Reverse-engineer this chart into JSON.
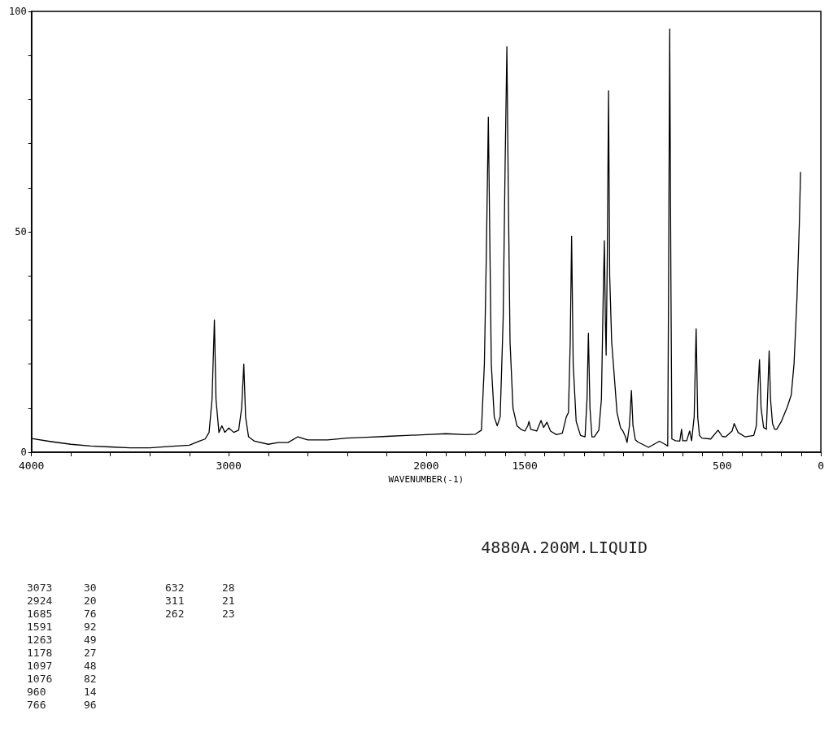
{
  "chart_data": {
    "type": "line",
    "xlabel": "WAVENUMBER(-1)",
    "xlim": [
      4000,
      0
    ],
    "ylim": [
      0,
      100
    ],
    "xticks": [
      4000,
      {
        "value": 3800,
        "label": null
      },
      {
        "value": 3600,
        "label": null
      },
      {
        "value": 3400,
        "label": null
      },
      {
        "value": 3200,
        "label": null
      },
      3000,
      {
        "value": 2800,
        "label": null
      },
      {
        "value": 2600,
        "label": null
      },
      {
        "value": 2400,
        "label": null
      },
      {
        "value": 2200,
        "label": null
      },
      2000,
      {
        "value": 1900,
        "label": null
      },
      {
        "value": 1800,
        "label": null
      },
      {
        "value": 1700,
        "label": null
      },
      {
        "value": 1600,
        "label": null
      },
      1500,
      {
        "value": 1400,
        "label": null
      },
      {
        "value": 1300,
        "label": null
      },
      {
        "value": 1200,
        "label": null
      },
      {
        "value": 1100,
        "label": null
      },
      {
        "value": 1000,
        "label": null
      },
      {
        "value": 900,
        "label": null
      },
      {
        "value": 800,
        "label": null
      },
      {
        "value": 700,
        "label": null
      },
      {
        "value": 600,
        "label": null
      },
      500,
      {
        "value": 400,
        "label": null
      },
      {
        "value": 300,
        "label": null
      },
      {
        "value": 200,
        "label": null
      },
      {
        "value": 100,
        "label": null
      },
      0
    ],
    "yticks": [
      0,
      {
        "value": 10,
        "label": null
      },
      {
        "value": 20,
        "label": null
      },
      {
        "value": 30,
        "label": null
      },
      {
        "value": 40,
        "label": null
      },
      50,
      {
        "value": 60,
        "label": null
      },
      {
        "value": 70,
        "label": null
      },
      {
        "value": 80,
        "label": null
      },
      {
        "value": 90,
        "label": null
      },
      100
    ],
    "grid": false,
    "marker": "none",
    "line_style": "solid",
    "series": [
      {
        "color": "#000000",
        "x": [
          4000,
          3900,
          3800,
          3700,
          3600,
          3500,
          3400,
          3300,
          3200,
          3150,
          3120,
          3100,
          3085,
          3073,
          3065,
          3050,
          3035,
          3020,
          3000,
          2975,
          2950,
          2935,
          2924,
          2915,
          2900,
          2870,
          2800,
          2750,
          2700,
          2650,
          2600,
          2500,
          2400,
          2300,
          2200,
          2100,
          2000,
          1900,
          1800,
          1750,
          1720,
          1705,
          1695,
          1685,
          1678,
          1670,
          1655,
          1640,
          1625,
          1610,
          1600,
          1591,
          1584,
          1575,
          1560,
          1540,
          1520,
          1500,
          1485,
          1479,
          1470,
          1440,
          1418,
          1405,
          1388,
          1370,
          1340,
          1310,
          1290,
          1279,
          1270,
          1263,
          1255,
          1240,
          1218,
          1195,
          1185,
          1178,
          1170,
          1160,
          1148,
          1125,
          1112,
          1103,
          1097,
          1092,
          1088,
          1082,
          1076,
          1070,
          1060,
          1048,
          1033,
          1015,
          1003,
          990,
          982,
          970,
          960,
          952,
          940,
          927,
          873,
          818,
          790,
          776,
          772,
          766,
          760,
          755,
          736,
          715,
          706,
          700,
          680,
          665,
          655,
          642,
          632,
          624,
          615,
          603,
          558,
          521,
          500,
          482,
          450,
          439,
          420,
          385,
          340,
          327,
          318,
          311,
          303,
          290,
          276,
          268,
          262,
          255,
          245,
          234,
          224,
          200,
          170,
          150,
          136,
          121,
          109,
          103
        ],
        "values": [
          3.1,
          2.4,
          1.8,
          1.4,
          1.2,
          1.0,
          1.0,
          1.3,
          1.6,
          2.5,
          3.0,
          4.5,
          12,
          30,
          12,
          4.5,
          6,
          4.5,
          5.5,
          4.5,
          5,
          10,
          20,
          8,
          3.5,
          2.5,
          1.8,
          2.2,
          2.2,
          3.5,
          2.8,
          2.8,
          3.2,
          3.4,
          3.6,
          3.8,
          4.0,
          4.2,
          4.0,
          4.1,
          5,
          20,
          45,
          76,
          50,
          20,
          8,
          6,
          8,
          30,
          65,
          92,
          60,
          25,
          10,
          6,
          5.2,
          4.8,
          6,
          7,
          5.2,
          4.8,
          7.2,
          5.6,
          6.8,
          4.8,
          4.0,
          4.3,
          8,
          9,
          25,
          49,
          20,
          7,
          3.8,
          3.5,
          12,
          27,
          10,
          3.5,
          3.5,
          5,
          12,
          35,
          48,
          30,
          22,
          45,
          82,
          40,
          25,
          18,
          9,
          5.5,
          4.8,
          3.5,
          2.2,
          6,
          14,
          6,
          2.8,
          2.3,
          1.1,
          2.5,
          1.8,
          1.4,
          35,
          96,
          40,
          3,
          2.6,
          2.5,
          5.2,
          2.6,
          2.6,
          4.8,
          2.6,
          8,
          28,
          8,
          3.8,
          3.2,
          3.0,
          5.0,
          3.6,
          3.5,
          4.8,
          6.5,
          4.5,
          3.5,
          3.8,
          6,
          15,
          21,
          10,
          5.6,
          5.2,
          15,
          23,
          12,
          6.5,
          5.2,
          5.2,
          7,
          10.3,
          13,
          20,
          35,
          52,
          63.5
        ]
      }
    ],
    "annotations": [
      "4880A.200M.LIQUID",
      "3073  30",
      "2924  20",
      "1685  76",
      "1591  92",
      "1263  49",
      "1178  27",
      "1097  48",
      "1076  82",
      "960  14",
      "766  96",
      "632  28",
      "311  21",
      "262  23"
    ]
  }
}
